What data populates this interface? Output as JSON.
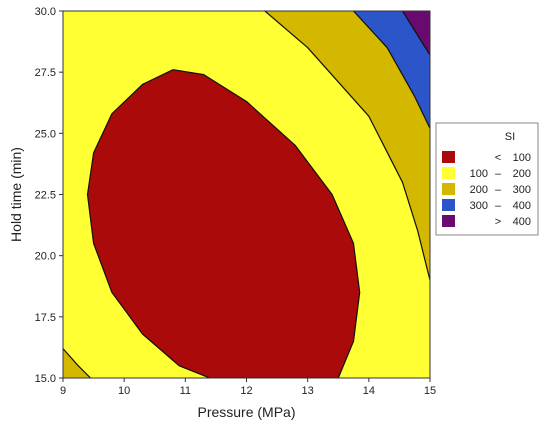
{
  "chart_data": {
    "type": "contour",
    "xlabel": "Pressure (MPa)",
    "ylabel": "Hold time (min)",
    "xlim": [
      9,
      15
    ],
    "ylim": [
      15.0,
      30.0
    ],
    "x_ticks": [
      "9",
      "10",
      "11",
      "12",
      "13",
      "14",
      "15"
    ],
    "y_ticks": [
      "15.0",
      "17.5",
      "20.0",
      "22.5",
      "25.0",
      "27.5",
      "30.0"
    ],
    "response": "SI",
    "legend": {
      "title": "SI",
      "placement": "right",
      "entries": [
        {
          "op": "<",
          "lo": "",
          "hi": "100",
          "color": "#aa0a0a"
        },
        {
          "op": "–",
          "lo": "100",
          "hi": "200",
          "color": "#ffff33"
        },
        {
          "op": "–",
          "lo": "200",
          "hi": "300",
          "color": "#d4b800"
        },
        {
          "op": "–",
          "lo": "300",
          "hi": "400",
          "color": "#2b55c9"
        },
        {
          "op": ">",
          "lo": "",
          "hi": "400",
          "color": "#6a0a70"
        }
      ]
    },
    "contours": [
      {
        "level": 100,
        "points": [
          [
            10.8,
            27.6
          ],
          [
            10.3,
            27.0
          ],
          [
            9.8,
            25.8
          ],
          [
            9.5,
            24.2
          ],
          [
            9.4,
            22.5
          ],
          [
            9.5,
            20.5
          ],
          [
            9.8,
            18.5
          ],
          [
            10.3,
            16.8
          ],
          [
            10.9,
            15.5
          ],
          [
            11.4,
            15.0
          ],
          [
            13.5,
            15.0
          ],
          [
            13.75,
            16.5
          ],
          [
            13.85,
            18.5
          ],
          [
            13.75,
            20.5
          ],
          [
            13.4,
            22.5
          ],
          [
            12.8,
            24.5
          ],
          [
            12.0,
            26.3
          ],
          [
            11.3,
            27.4
          ],
          [
            10.8,
            27.6
          ]
        ]
      },
      {
        "level": 200,
        "points": [
          [
            12.3,
            30.0
          ],
          [
            13.0,
            28.5
          ],
          [
            14.0,
            25.7
          ],
          [
            14.55,
            23.0
          ],
          [
            14.8,
            21.0
          ],
          [
            14.95,
            19.5
          ],
          [
            15.0,
            19.0
          ]
        ]
      },
      {
        "level": 200,
        "points": [
          [
            9.0,
            16.2
          ],
          [
            9.25,
            15.5
          ],
          [
            9.45,
            15.0
          ]
        ]
      },
      {
        "level": 300,
        "points": [
          [
            13.75,
            30.0
          ],
          [
            14.3,
            28.5
          ],
          [
            14.75,
            26.5
          ],
          [
            15.0,
            25.2
          ]
        ]
      },
      {
        "level": 400,
        "points": [
          [
            14.55,
            30.0
          ],
          [
            14.8,
            29.0
          ],
          [
            15.0,
            28.2
          ]
        ]
      }
    ]
  }
}
